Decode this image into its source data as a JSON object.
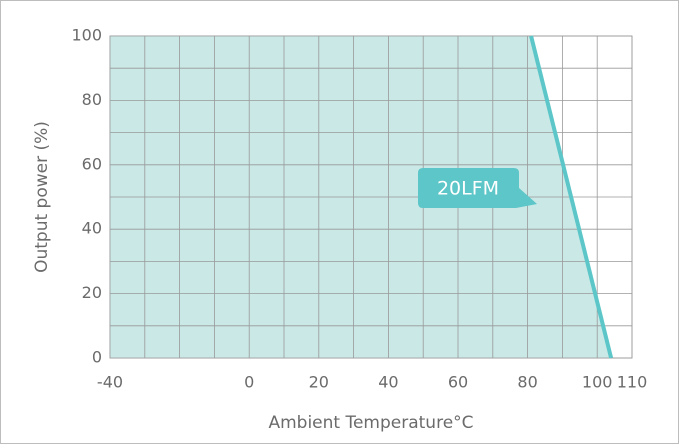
{
  "chart_data": {
    "type": "line",
    "x_label": "Ambient Temperature°C",
    "y_label": "Output power (%)",
    "series": [
      {
        "name": "20LFM",
        "color": "#5cc6c8",
        "fill": "#c9e8e6",
        "x": [
          81,
          104
        ],
        "values": [
          100,
          0
        ]
      }
    ],
    "xlim": [
      -40,
      110
    ],
    "ylim": [
      0,
      100
    ],
    "xticks": [
      -40,
      0,
      20,
      40,
      60,
      80,
      100,
      110
    ],
    "yticks": [
      0,
      20,
      40,
      60,
      80,
      100
    ],
    "xgrid": [
      -40,
      -30,
      -20,
      -10,
      0,
      10,
      20,
      30,
      40,
      50,
      60,
      70,
      80,
      90,
      100,
      110
    ],
    "ygrid": [
      0,
      10,
      20,
      30,
      40,
      50,
      60,
      70,
      80,
      90,
      100
    ],
    "grid": true
  }
}
